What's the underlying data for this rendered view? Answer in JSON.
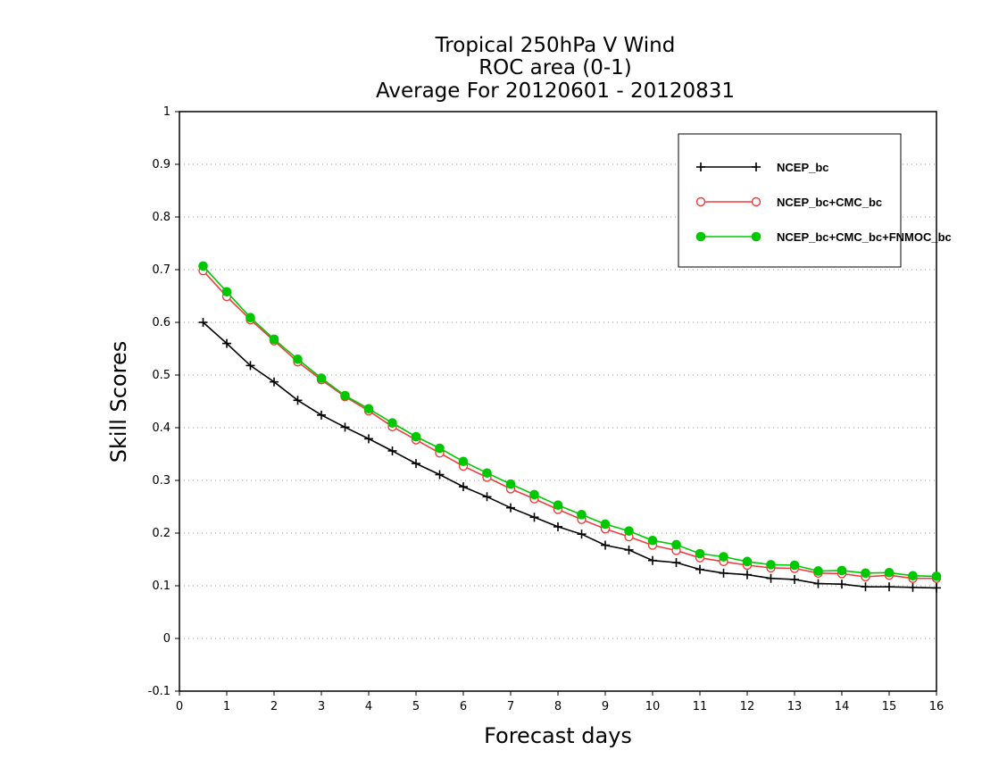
{
  "chart_data": {
    "type": "line",
    "title_lines": [
      "Tropical 250hPa V Wind",
      "ROC area (0-1)",
      "Average For 20120601 - 20120831"
    ],
    "xlabel": "Forecast days",
    "ylabel": "Skill Scores",
    "xlim": [
      0,
      16
    ],
    "ylim": [
      -0.1,
      1
    ],
    "x_ticks": [
      0,
      1,
      2,
      3,
      4,
      5,
      6,
      7,
      8,
      9,
      10,
      11,
      12,
      13,
      14,
      15,
      16
    ],
    "x_tick_labels": [
      "0",
      "1",
      "2",
      "3",
      "4",
      "5",
      "6",
      "7",
      "8",
      "9",
      "10",
      "11",
      "12",
      "13",
      "14",
      "15",
      "16"
    ],
    "y_ticks": [
      -0.1,
      0,
      0.1,
      0.2,
      0.3,
      0.4,
      0.5,
      0.6,
      0.7,
      0.8,
      0.9,
      1
    ],
    "y_tick_labels": [
      "-0.1",
      "0",
      "0.1",
      "0.2",
      "0.3",
      "0.4",
      "0.5",
      "0.6",
      "0.7",
      "0.8",
      "0.9",
      "1"
    ],
    "grid": "horizontal dotted",
    "legend_position": "top-right",
    "x": [
      0.5,
      1,
      1.5,
      2,
      2.5,
      3,
      3.5,
      4,
      4.5,
      5,
      5.5,
      6,
      6.5,
      7,
      7.5,
      8,
      8.5,
      9,
      9.5,
      10,
      10.5,
      11,
      11.5,
      12,
      12.5,
      13,
      13.5,
      14,
      14.5,
      15,
      15.5,
      16
    ],
    "series": [
      {
        "name": "NCEP_bc",
        "color": "#000000",
        "marker": "plus",
        "values": [
          0.6,
          0.56,
          0.518,
          0.487,
          0.452,
          0.424,
          0.401,
          0.379,
          0.356,
          0.332,
          0.311,
          0.288,
          0.269,
          0.248,
          0.23,
          0.212,
          0.198,
          0.177,
          0.168,
          0.148,
          0.144,
          0.131,
          0.124,
          0.121,
          0.114,
          0.112,
          0.104,
          0.103,
          0.098,
          0.098,
          0.097,
          0.096
        ]
      },
      {
        "name": "NCEP_bc+CMC_bc",
        "color": "#f03c3c",
        "marker": "open-circle",
        "values": [
          0.698,
          0.649,
          0.605,
          0.565,
          0.525,
          0.491,
          0.459,
          0.432,
          0.402,
          0.377,
          0.352,
          0.327,
          0.306,
          0.284,
          0.265,
          0.245,
          0.226,
          0.208,
          0.193,
          0.177,
          0.167,
          0.153,
          0.146,
          0.139,
          0.134,
          0.133,
          0.124,
          0.123,
          0.117,
          0.12,
          0.114,
          0.114
        ]
      },
      {
        "name": "NCEP_bc+CMC_bc+FNMOC_bc",
        "color": "#00c800",
        "marker": "filled-circle",
        "values": [
          0.707,
          0.658,
          0.609,
          0.568,
          0.53,
          0.494,
          0.461,
          0.436,
          0.409,
          0.383,
          0.361,
          0.336,
          0.314,
          0.293,
          0.273,
          0.253,
          0.235,
          0.217,
          0.204,
          0.186,
          0.178,
          0.161,
          0.155,
          0.146,
          0.14,
          0.139,
          0.128,
          0.129,
          0.124,
          0.125,
          0.119,
          0.118
        ]
      }
    ]
  }
}
